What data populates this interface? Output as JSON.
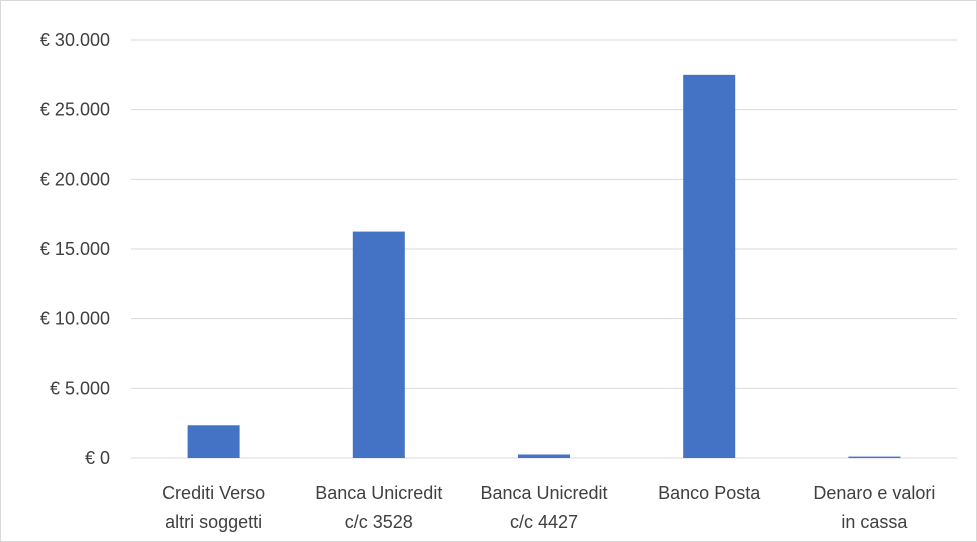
{
  "chart_data": {
    "type": "bar",
    "categories": [
      [
        "Crediti Verso",
        "altri soggetti"
      ],
      [
        "Banca Unicredit",
        "c/c 3528"
      ],
      [
        "Banca Unicredit",
        "c/c  4427"
      ],
      [
        "Banco Posta"
      ],
      [
        "Denaro e valori",
        "in cassa"
      ]
    ],
    "values": [
      2350,
      16250,
      250,
      27500,
      100
    ],
    "yticks": [
      "€ 0",
      "€ 5.000",
      "€ 10.000",
      "€ 15.000",
      "€ 20.000",
      "€ 25.000",
      "€ 30.000"
    ],
    "ylim": [
      0,
      30000
    ],
    "grid": true,
    "legend": "none",
    "bar_color": "#4472c4",
    "grid_color": "#d9d9d9",
    "text_color": "#404040"
  }
}
